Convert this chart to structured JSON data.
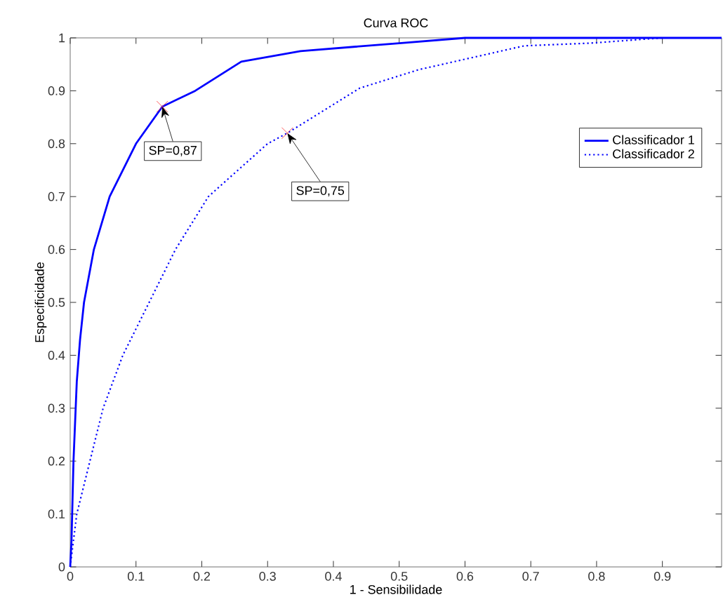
{
  "chart_data": {
    "type": "line",
    "title": "Curva ROC",
    "xlabel": "1 - Sensibilidade",
    "ylabel": "Especificidade",
    "xlim": [
      0,
      0.99
    ],
    "ylim": [
      0,
      1
    ],
    "xticks": [
      0,
      0.1,
      0.2,
      0.3,
      0.4,
      0.5,
      0.6,
      0.7,
      0.8,
      0.9
    ],
    "yticks": [
      0,
      0.1,
      0.2,
      0.3,
      0.4,
      0.5,
      0.6,
      0.7,
      0.8,
      0.9,
      1
    ],
    "series": [
      {
        "name": "Classificador 1",
        "color": "#0000ff",
        "line_style": "solid",
        "x": [
          0,
          0.002,
          0.005,
          0.01,
          0.015,
          0.021,
          0.036,
          0.06,
          0.1,
          0.14,
          0.19,
          0.26,
          0.35,
          0.5,
          0.6,
          0.7,
          0.8,
          0.9,
          0.99
        ],
        "values": [
          0,
          0.05,
          0.2,
          0.35,
          0.43,
          0.5,
          0.6,
          0.7,
          0.8,
          0.87,
          0.9,
          0.955,
          0.975,
          0.99,
          1.0,
          1.0,
          1.0,
          1.0,
          1.0
        ]
      },
      {
        "name": "Classificador 2",
        "color": "#0000ff",
        "line_style": "dotted",
        "x": [
          0,
          0.01,
          0.03,
          0.05,
          0.08,
          0.12,
          0.16,
          0.21,
          0.3,
          0.33,
          0.44,
          0.53,
          0.69,
          0.79,
          0.9,
          0.99
        ],
        "values": [
          0,
          0.1,
          0.2,
          0.3,
          0.4,
          0.5,
          0.6,
          0.7,
          0.8,
          0.82,
          0.905,
          0.94,
          0.985,
          0.99,
          1.0,
          1.0
        ]
      }
    ],
    "annotations": [
      {
        "text": "SP=0,87",
        "x": 0.14,
        "y": 0.87
      },
      {
        "text": "SP=0,75",
        "x": 0.33,
        "y": 0.82
      }
    ],
    "legend": "right",
    "grid": false,
    "marker": "none"
  }
}
